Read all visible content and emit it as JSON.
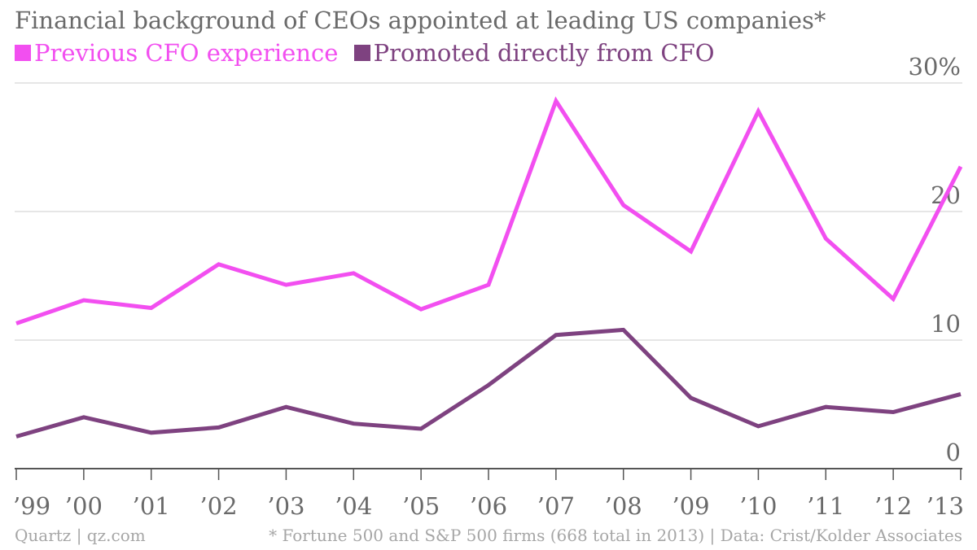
{
  "title": "Financial background of CEOs appointed at leading US companies*",
  "footer": {
    "source_left": "Quartz | qz.com",
    "note_right": "* Fortune 500 and S&P 500 firms (668 total in 2013) | Data: Crist/Kolder Associates"
  },
  "chart_data": {
    "type": "line",
    "title": "Financial background of CEOs appointed at leading US companies*",
    "xlabel": "",
    "ylabel": "",
    "x": [
      "’99",
      "’00",
      "’01",
      "’02",
      "’03",
      "’04",
      "’05",
      "’06",
      "’07",
      "’08",
      "’09",
      "’10",
      "’11",
      "’12",
      "’13"
    ],
    "ylim": [
      0,
      30
    ],
    "yticks": [
      {
        "value": 0,
        "label": "0"
      },
      {
        "value": 10,
        "label": "10"
      },
      {
        "value": 20,
        "label": "20"
      },
      {
        "value": 30,
        "label": "30%"
      }
    ],
    "grid": true,
    "legend_position": "top-left",
    "series": [
      {
        "name": "Previous CFO experience",
        "color": "#f24ff0",
        "values": [
          11.3,
          13.1,
          12.5,
          15.9,
          14.3,
          15.2,
          12.4,
          14.3,
          28.6,
          20.5,
          16.9,
          27.8,
          17.9,
          13.2,
          23.5
        ]
      },
      {
        "name": "Promoted directly from CFO",
        "color": "#7e4280",
        "values": [
          2.5,
          4.0,
          2.8,
          3.2,
          4.8,
          3.5,
          3.1,
          6.5,
          10.4,
          10.8,
          5.5,
          3.3,
          4.8,
          4.4,
          5.8
        ]
      }
    ]
  }
}
